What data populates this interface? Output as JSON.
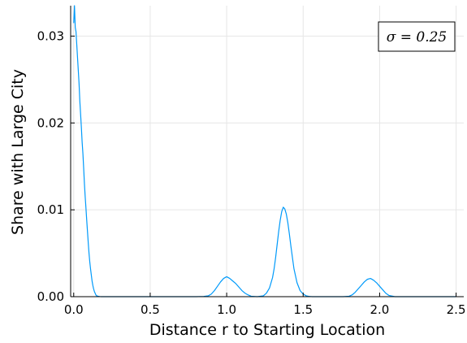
{
  "chart_data": {
    "type": "line",
    "title": "",
    "xlabel": "Distance r to Starting Location",
    "ylabel": "Share with Large City",
    "xlim": [
      -0.02,
      2.55
    ],
    "ylim": [
      0,
      0.0335
    ],
    "x_ticks": [
      0.0,
      0.5,
      1.0,
      1.5,
      2.0,
      2.5
    ],
    "x_tick_labels": [
      "0.0",
      "0.5",
      "1.0",
      "1.5",
      "2.0",
      "2.5"
    ],
    "y_ticks": [
      0.0,
      0.01,
      0.02,
      0.03
    ],
    "y_tick_labels": [
      "0.00",
      "0.01",
      "0.02",
      "0.03"
    ],
    "grid": true,
    "legend_position": "top-right",
    "legend_label": "σ = 0.25",
    "series_color": "#009AFA",
    "series": [
      {
        "name": "σ = 0.25",
        "x": [
          0.0,
          0.005,
          0.01,
          0.015,
          0.02,
          0.025,
          0.03,
          0.035,
          0.04,
          0.045,
          0.05,
          0.055,
          0.06,
          0.065,
          0.07,
          0.075,
          0.08,
          0.085,
          0.09,
          0.095,
          0.1,
          0.105,
          0.11,
          0.115,
          0.12,
          0.125,
          0.13,
          0.135,
          0.14,
          0.145,
          0.15,
          0.16,
          0.17,
          0.18,
          0.19,
          0.2,
          0.25,
          0.3,
          0.4,
          0.5,
          0.6,
          0.7,
          0.8,
          0.85,
          0.88,
          0.9,
          0.92,
          0.94,
          0.96,
          0.98,
          1.0,
          1.02,
          1.04,
          1.06,
          1.08,
          1.1,
          1.12,
          1.14,
          1.16,
          1.2,
          1.24,
          1.26,
          1.28,
          1.3,
          1.31,
          1.32,
          1.33,
          1.34,
          1.35,
          1.36,
          1.37,
          1.38,
          1.39,
          1.4,
          1.41,
          1.42,
          1.43,
          1.44,
          1.46,
          1.48,
          1.5,
          1.52,
          1.54,
          1.56,
          1.6,
          1.7,
          1.76,
          1.8,
          1.82,
          1.84,
          1.86,
          1.88,
          1.9,
          1.92,
          1.94,
          1.96,
          1.98,
          2.0,
          2.02,
          2.04,
          2.06,
          2.1,
          2.2,
          2.3,
          2.4,
          2.5
        ],
        "y": [
          0.0315,
          0.0335,
          0.031,
          0.0305,
          0.029,
          0.0275,
          0.026,
          0.0245,
          0.0225,
          0.021,
          0.0195,
          0.0178,
          0.0165,
          0.0148,
          0.013,
          0.0115,
          0.0102,
          0.0088,
          0.0075,
          0.0062,
          0.005,
          0.004,
          0.0032,
          0.0025,
          0.0018,
          0.0013,
          0.0009,
          0.0006,
          0.0004,
          0.0002,
          0.0001,
          5e-05,
          2e-05,
          0.0,
          0.0,
          0.0,
          0.0,
          0.0,
          0.0,
          0.0,
          0.0,
          0.0,
          0.0,
          3e-05,
          0.0001,
          0.0003,
          0.0007,
          0.0012,
          0.0017,
          0.0021,
          0.0023,
          0.0021,
          0.0018,
          0.0015,
          0.0011,
          0.0007,
          0.0004,
          0.0002,
          5e-05,
          0.0,
          0.0001,
          0.0004,
          0.001,
          0.0022,
          0.0032,
          0.0045,
          0.006,
          0.0075,
          0.0088,
          0.0098,
          0.0103,
          0.0101,
          0.0095,
          0.0085,
          0.0072,
          0.0058,
          0.0045,
          0.0032,
          0.0016,
          0.0007,
          0.0003,
          0.0001,
          3e-05,
          0.0,
          0.0,
          0.0,
          0.0,
          5e-05,
          0.0002,
          0.0005,
          0.0009,
          0.0013,
          0.0017,
          0.002,
          0.0021,
          0.0019,
          0.0016,
          0.0012,
          0.0008,
          0.0004,
          0.00015,
          0.0,
          0.0,
          0.0,
          0.0,
          0.0
        ]
      }
    ]
  }
}
